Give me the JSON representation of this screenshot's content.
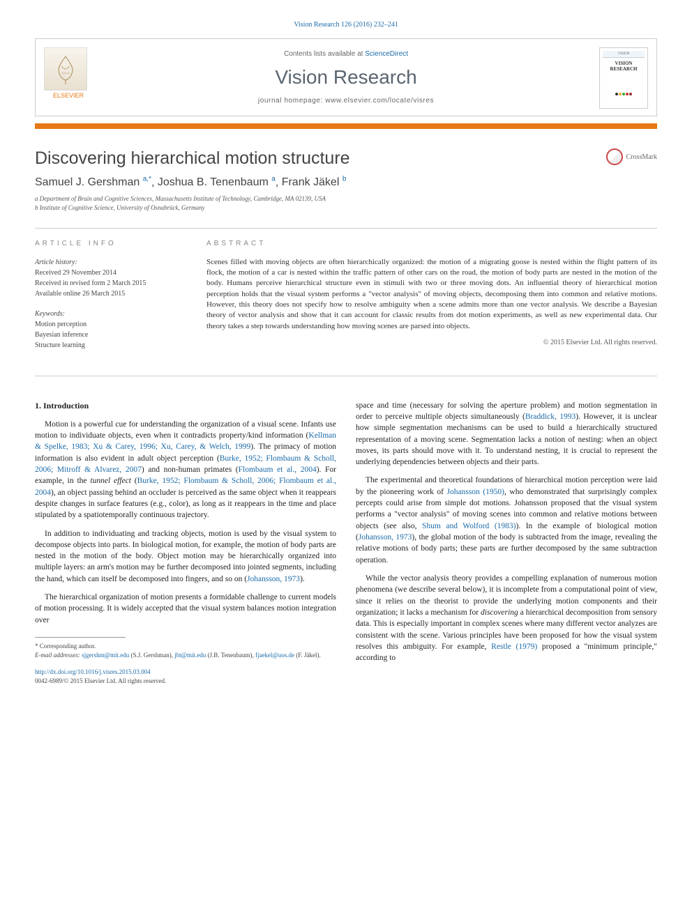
{
  "journal_ref": "Vision Research 126 (2016) 232–241",
  "header": {
    "contents_prefix": "Contents lists available at ",
    "contents_link": "ScienceDirect",
    "journal_name": "Vision Research",
    "homepage_prefix": "journal homepage: ",
    "homepage_url": "www.elsevier.com/locate/visres",
    "publisher": "ELSEVIER",
    "cover_top": "VISION",
    "cover_title": "VISION RESEARCH"
  },
  "crossmark": "CrossMark",
  "title": "Discovering hierarchical motion structure",
  "authors": [
    {
      "name": "Samuel J. Gershman",
      "marks": "a,*"
    },
    {
      "name": "Joshua B. Tenenbaum",
      "marks": "a"
    },
    {
      "name": "Frank Jäkel",
      "marks": "b"
    }
  ],
  "affiliations": [
    "a Department of Brain and Cognitive Sciences, Massachusetts Institute of Technology, Cambridge, MA 02139, USA",
    "b Institute of Cognitive Science, University of Osnabrück, Germany"
  ],
  "info": {
    "label": "article info",
    "history_title": "Article history:",
    "history": [
      "Received 29 November 2014",
      "Received in revised form 2 March 2015",
      "Available online 26 March 2015"
    ],
    "keywords_title": "Keywords:",
    "keywords": [
      "Motion perception",
      "Bayesian inference",
      "Structure learning"
    ]
  },
  "abstract": {
    "label": "abstract",
    "text": "Scenes filled with moving objects are often hierarchically organized: the motion of a migrating goose is nested within the flight pattern of its flock, the motion of a car is nested within the traffic pattern of other cars on the road, the motion of body parts are nested in the motion of the body. Humans perceive hierarchical structure even in stimuli with two or three moving dots. An influential theory of hierarchical motion perception holds that the visual system performs a \"vector analysis\" of moving objects, decomposing them into common and relative motions. However, this theory does not specify how to resolve ambiguity when a scene admits more than one vector analysis. We describe a Bayesian theory of vector analysis and show that it can account for classic results from dot motion experiments, as well as new experimental data. Our theory takes a step towards understanding how moving scenes are parsed into objects.",
    "copyright": "© 2015 Elsevier Ltd. All rights reserved."
  },
  "section1_heading": "1. Introduction",
  "body": {
    "col1": [
      {
        "type": "p",
        "runs": [
          {
            "t": "Motion is a powerful cue for understanding the organization of a visual scene. Infants use motion to individuate objects, even when it contradicts property/kind information ("
          },
          {
            "t": "Kellman & Spelke, 1983; Xu & Carey, 1996; Xu, Carey, & Welch, 1999",
            "cite": true
          },
          {
            "t": "). The primacy of motion information is also evident in adult object perception ("
          },
          {
            "t": "Burke, 1952; Flombaum & Scholl, 2006; Mitroff & Alvarez, 2007",
            "cite": true
          },
          {
            "t": ") and non-human primates ("
          },
          {
            "t": "Flombaum et al., 2004",
            "cite": true
          },
          {
            "t": "). For example, in the "
          },
          {
            "t": "tunnel effect",
            "italic": true
          },
          {
            "t": " ("
          },
          {
            "t": "Burke, 1952; Flombaum & Scholl, 2006; Flombaum et al., 2004",
            "cite": true
          },
          {
            "t": "), an object passing behind an occluder is perceived as the same object when it reappears despite changes in surface features (e.g., color), as long as it reappears in the time and place stipulated by a spatiotemporally continuous trajectory."
          }
        ]
      },
      {
        "type": "p",
        "runs": [
          {
            "t": "In addition to individuating and tracking objects, motion is used by the visual system to decompose objects into parts. In biological motion, for example, the motion of body parts are nested in the motion of the body. Object motion may be hierarchically organized into multiple layers: an arm's motion may be further decomposed into jointed segments, including the hand, which can itself be decomposed into fingers, and so on ("
          },
          {
            "t": "Johansson, 1973",
            "cite": true
          },
          {
            "t": ")."
          }
        ]
      },
      {
        "type": "p",
        "runs": [
          {
            "t": "The hierarchical organization of motion presents a formidable challenge to current models of motion processing. It is widely accepted that the visual system balances motion integration over"
          }
        ]
      }
    ],
    "col2": [
      {
        "type": "p",
        "noindent": true,
        "runs": [
          {
            "t": "space and time (necessary for solving the aperture problem) and motion segmentation in order to perceive multiple objects simultaneously ("
          },
          {
            "t": "Braddick, 1993",
            "cite": true
          },
          {
            "t": "). However, it is unclear how simple segmentation mechanisms can be used to build a hierarchically structured representation of a moving scene. Segmentation lacks a notion of nesting: when an object moves, its parts should move with it. To understand nesting, it is crucial to represent the underlying dependencies between objects and their parts."
          }
        ]
      },
      {
        "type": "p",
        "runs": [
          {
            "t": "The experimental and theoretical foundations of hierarchical motion perception were laid by the pioneering work of "
          },
          {
            "t": "Johansson (1950)",
            "cite": true
          },
          {
            "t": ", who demonstrated that surprisingly complex percepts could arise from simple dot motions. Johansson proposed that the visual system performs a \"vector analysis\" of moving scenes into common and relative motions between objects (see also, "
          },
          {
            "t": "Shum and Wolford (1983)",
            "cite": true
          },
          {
            "t": "). In the example of biological motion ("
          },
          {
            "t": "Johansson, 1973",
            "cite": true
          },
          {
            "t": "), the global motion of the body is subtracted from the image, revealing the relative motions of body parts; these parts are further decomposed by the same subtraction operation."
          }
        ]
      },
      {
        "type": "p",
        "runs": [
          {
            "t": "While the vector analysis theory provides a compelling explanation of numerous motion phenomena (we describe several below), it is incomplete from a computational point of view, since it relies on the theorist to provide the underlying motion components and their organization; it lacks a mechanism for "
          },
          {
            "t": "discovering",
            "italic": true
          },
          {
            "t": " a hierarchical decomposition from sensory data. This is especially important in complex scenes where many different vector analyzes are consistent with the scene. Various principles have been proposed for how the visual system resolves this ambiguity. For example, "
          },
          {
            "t": "Restle (1979)",
            "cite": true
          },
          {
            "t": " proposed a \"minimum principle,\" according to"
          }
        ]
      }
    ]
  },
  "footnote": {
    "corr": "* Corresponding author.",
    "email_label": "E-mail addresses:",
    "emails": [
      {
        "addr": "sjgershm@mit.edu",
        "who": "(S.J. Gershman)"
      },
      {
        "addr": "jbt@mit.edu",
        "who": "(J.B. Tenenbaum)"
      },
      {
        "addr": "fjaekel@uos.de",
        "who": "(F. Jäkel)"
      }
    ]
  },
  "doi": {
    "url": "http://dx.doi.org/10.1016/j.visres.2015.03.004",
    "issn": "0042-6989/© 2015 Elsevier Ltd. All rights reserved."
  },
  "colors": {
    "link": "#1a6aa8",
    "orange": "#e67817"
  }
}
